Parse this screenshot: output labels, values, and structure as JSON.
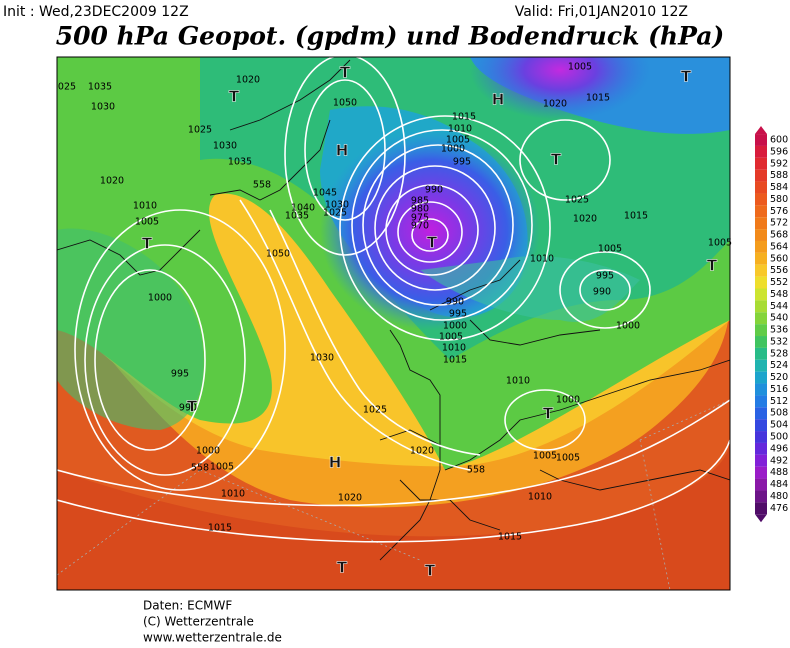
{
  "header": {
    "init": "Init : Wed,23DEC2009 12Z",
    "valid": "Valid: Fri,01JAN2010 12Z",
    "title": "500 hPa Geopot. (gpdm) und Bodendruck (hPa)"
  },
  "colorbar": {
    "ticks": [
      600,
      596,
      592,
      588,
      584,
      580,
      576,
      572,
      568,
      564,
      560,
      556,
      552,
      548,
      544,
      540,
      536,
      532,
      528,
      524,
      520,
      516,
      512,
      508,
      504,
      500,
      496,
      492,
      488,
      484,
      480,
      476
    ],
    "colors": [
      "#c8104a",
      "#d81c3c",
      "#e02a30",
      "#e43a28",
      "#e84a22",
      "#ec5a1e",
      "#ee6a1c",
      "#f07a1a",
      "#f28a1a",
      "#f49c1c",
      "#f6b020",
      "#f8c82a",
      "#eede2c",
      "#cce430",
      "#a8dc34",
      "#84d43a",
      "#60cc48",
      "#40c460",
      "#28bc88",
      "#20b4b0",
      "#1ca4cc",
      "#2090dc",
      "#247ce4",
      "#2a62e4",
      "#3448e0",
      "#4634dc",
      "#6428dc",
      "#8220d8",
      "#9a1cc8",
      "#8a18a8",
      "#6c1488",
      "#500c68"
    ]
  },
  "map": {
    "labels": [
      "1035",
      "1030",
      "025",
      "1025",
      "1020",
      "1030",
      "1035",
      "1020",
      "1010",
      "1005",
      "1000",
      "995",
      "990",
      "1000",
      "1005",
      "1010",
      "1015",
      "1020",
      "1025",
      "1030",
      "1050",
      "1050",
      "1045",
      "1040",
      "1035",
      "1030",
      "1025",
      "1015",
      "1010",
      "1005",
      "1000",
      "995",
      "990",
      "985",
      "980",
      "975",
      "970",
      "1005",
      "1015",
      "1020",
      "1025",
      "1020",
      "1015",
      "1010",
      "1005",
      "995",
      "990",
      "1000",
      "990",
      "995",
      "1000",
      "1005",
      "1010",
      "1015",
      "1010",
      "1000",
      "1005",
      "1005",
      "1020",
      "1010",
      "1015",
      "1005",
      "558",
      "558",
      "558"
    ],
    "centers": [
      "T",
      "T",
      "T",
      "H",
      "H",
      "T",
      "T",
      "T",
      "T",
      "T",
      "T",
      "H",
      "T",
      "T"
    ]
  },
  "footer": {
    "source": "Daten: ECMWF",
    "copyright": "(C) Wetterzentrale",
    "url": "www.wetterzentrale.de"
  }
}
